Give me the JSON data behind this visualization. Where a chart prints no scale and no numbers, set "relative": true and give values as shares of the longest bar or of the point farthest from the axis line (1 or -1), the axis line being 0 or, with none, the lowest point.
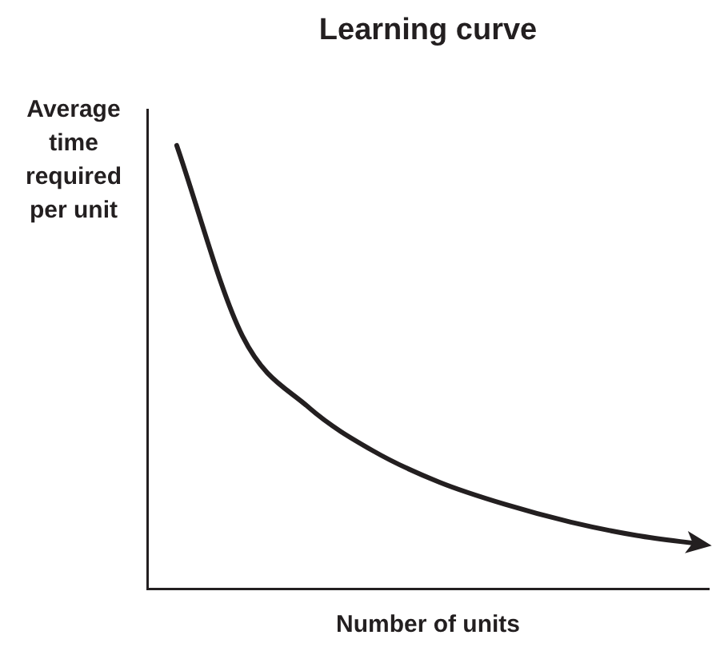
{
  "chart_data": {
    "type": "line",
    "title": "Learning curve",
    "xlabel": "Number of units",
    "ylabel": "Average time required per unit",
    "relative": true,
    "categories": [
      null,
      null,
      null,
      null,
      null,
      null,
      null,
      null,
      null
    ],
    "series": [
      {
        "color": "#231f20",
        "values": [
          1,
          0.57,
          0.41,
          0.31,
          0.24,
          0.19,
          0.15,
          0.12,
          0.1
        ]
      }
    ],
    "grid": false,
    "legend": false,
    "marker": "none",
    "line_style": "solid"
  }
}
